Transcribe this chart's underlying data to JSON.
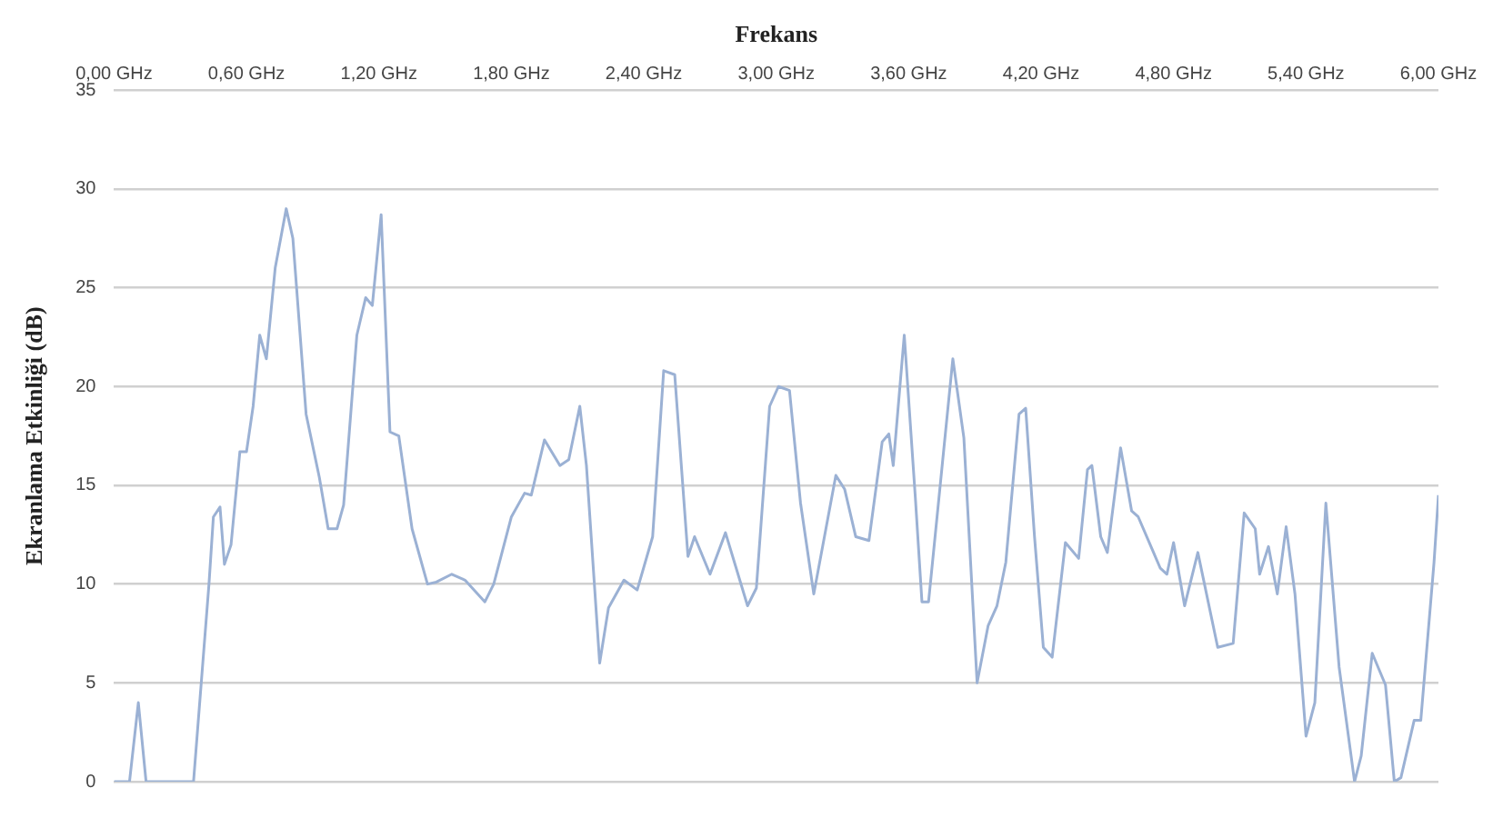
{
  "chart_data": {
    "type": "line",
    "xlabel": "Frekans",
    "ylabel": "Ekranlama Etkinliği (dB)",
    "xlim": [
      0,
      6
    ],
    "xticks": [
      {
        "value": 0,
        "label": "0,00 GHz"
      },
      {
        "value": 0.6,
        "label": "0,60 GHz"
      },
      {
        "value": 1.2,
        "label": "1,20 GHz"
      },
      {
        "value": 1.8,
        "label": "1,80 GHz"
      },
      {
        "value": 2.4,
        "label": "2,40 GHz"
      },
      {
        "value": 3,
        "label": "3,00 GHz"
      },
      {
        "value": 3.6,
        "label": "3,60 GHz"
      },
      {
        "value": 4.2,
        "label": "4,20 GHz"
      },
      {
        "value": 4.8,
        "label": "4,80 GHz"
      },
      {
        "value": 5.4,
        "label": "5,40 GHz"
      },
      {
        "value": 6,
        "label": "6,00 GHz"
      }
    ],
    "ylim": [
      0,
      35
    ],
    "yticks": [
      0,
      5,
      10,
      15,
      20,
      25,
      30,
      35
    ],
    "grid": "y",
    "marker": "none",
    "line_style": "solid",
    "series": [
      {
        "color": "#9bb1d4",
        "x": [
          0,
          0.07,
          0.11,
          0.145,
          0.36,
          0.43,
          0.45,
          0.48,
          0.5,
          0.53,
          0.57,
          0.6,
          0.63,
          0.66,
          0.69,
          0.73,
          0.78,
          0.81,
          0.87,
          0.93,
          0.97,
          1.01,
          1.04,
          1.1,
          1.14,
          1.17,
          1.21,
          1.25,
          1.29,
          1.35,
          1.42,
          1.46,
          1.53,
          1.59,
          1.68,
          1.72,
          1.8,
          1.86,
          1.89,
          1.95,
          2.02,
          2.06,
          2.11,
          2.14,
          2.2,
          2.24,
          2.31,
          2.37,
          2.44,
          2.49,
          2.54,
          2.6,
          2.63,
          2.7,
          2.77,
          2.87,
          2.91,
          2.97,
          3.01,
          3.06,
          3.11,
          3.17,
          3.27,
          3.31,
          3.36,
          3.42,
          3.48,
          3.51,
          3.53,
          3.58,
          3.63,
          3.66,
          3.69,
          3.8,
          3.85,
          3.91,
          3.96,
          4.0,
          4.04,
          4.1,
          4.13,
          4.17,
          4.21,
          4.25,
          4.31,
          4.37,
          4.41,
          4.43,
          4.47,
          4.5,
          4.56,
          4.61,
          4.64,
          4.74,
          4.77,
          4.8,
          4.85,
          4.91,
          5.0,
          5.07,
          5.12,
          5.17,
          5.19,
          5.23,
          5.27,
          5.31,
          5.35,
          5.4,
          5.44,
          5.49,
          5.55,
          5.62,
          5.65,
          5.7,
          5.76,
          5.8,
          5.83,
          5.89,
          5.92,
          5.98,
          6.0
        ],
        "values": [
          0,
          0,
          4,
          0,
          0,
          10,
          13.4,
          13.9,
          11,
          12,
          16.7,
          16.7,
          19,
          22.6,
          21.4,
          26,
          29,
          27.5,
          18.6,
          15.4,
          12.8,
          12.8,
          14,
          22.6,
          24.5,
          24.1,
          28.7,
          17.7,
          17.5,
          12.8,
          10,
          10.1,
          10.5,
          10.2,
          9.1,
          10,
          13.4,
          14.6,
          14.5,
          17.3,
          16,
          16.3,
          19,
          16,
          6,
          8.8,
          10.2,
          9.7,
          12.4,
          20.8,
          20.6,
          11.4,
          12.4,
          10.5,
          12.6,
          8.9,
          9.8,
          19,
          20,
          19.8,
          14.1,
          9.5,
          15.5,
          14.8,
          12.4,
          12.2,
          17.2,
          17.6,
          16,
          22.6,
          14.4,
          9.1,
          9.1,
          21.4,
          17.4,
          5,
          7.9,
          8.9,
          11.1,
          18.6,
          18.9,
          12.4,
          6.8,
          6.3,
          12.1,
          11.3,
          15.8,
          16,
          12.4,
          11.6,
          16.9,
          13.7,
          13.4,
          10.8,
          10.5,
          12.1,
          8.9,
          11.6,
          6.8,
          7,
          13.6,
          12.8,
          10.5,
          11.9,
          9.5,
          12.9,
          9.5,
          2.3,
          4,
          14.1,
          5.8,
          0,
          1.3,
          6.5,
          4.9,
          0,
          0.2,
          3.1,
          3.1,
          11.1,
          14.5
        ]
      }
    ]
  }
}
